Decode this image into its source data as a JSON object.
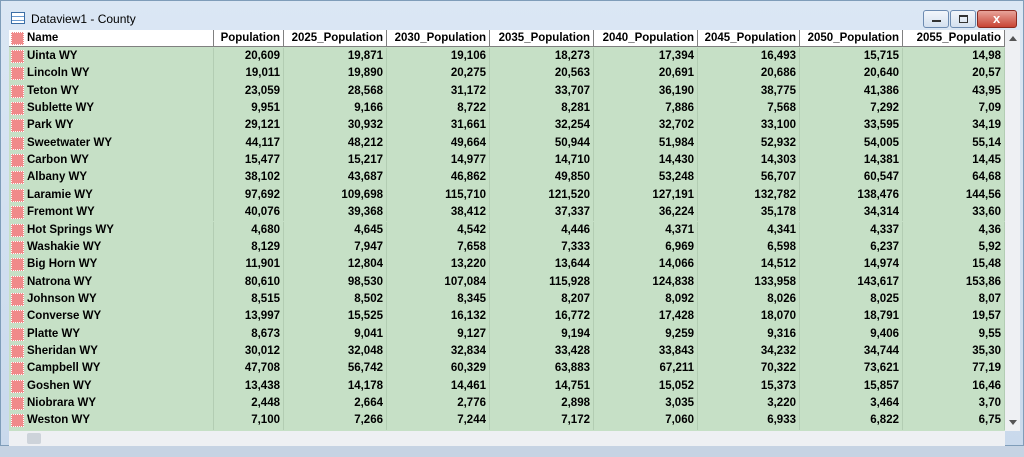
{
  "window": {
    "title": "Dataview1 - County"
  },
  "table": {
    "columns": [
      "Name",
      "Population",
      "2025_Population",
      "2030_Population",
      "2035_Population",
      "2040_Population",
      "2045_Population",
      "2050_Population",
      "2055_Populatio"
    ],
    "rows": [
      [
        "Uinta WY",
        "20,609",
        "19,871",
        "19,106",
        "18,273",
        "17,394",
        "16,493",
        "15,715",
        "14,98"
      ],
      [
        "Lincoln WY",
        "19,011",
        "19,890",
        "20,275",
        "20,563",
        "20,691",
        "20,686",
        "20,640",
        "20,57"
      ],
      [
        "Teton WY",
        "23,059",
        "28,568",
        "31,172",
        "33,707",
        "36,190",
        "38,775",
        "41,386",
        "43,95"
      ],
      [
        "Sublette WY",
        "9,951",
        "9,166",
        "8,722",
        "8,281",
        "7,886",
        "7,568",
        "7,292",
        "7,09"
      ],
      [
        "Park WY",
        "29,121",
        "30,932",
        "31,661",
        "32,254",
        "32,702",
        "33,100",
        "33,595",
        "34,19"
      ],
      [
        "Sweetwater WY",
        "44,117",
        "48,212",
        "49,664",
        "50,944",
        "51,984",
        "52,932",
        "54,005",
        "55,14"
      ],
      [
        "Carbon WY",
        "15,477",
        "15,217",
        "14,977",
        "14,710",
        "14,430",
        "14,303",
        "14,381",
        "14,45"
      ],
      [
        "Albany WY",
        "38,102",
        "43,687",
        "46,862",
        "49,850",
        "53,248",
        "56,707",
        "60,547",
        "64,68"
      ],
      [
        "Laramie WY",
        "97,692",
        "109,698",
        "115,710",
        "121,520",
        "127,191",
        "132,782",
        "138,476",
        "144,56"
      ],
      [
        "Fremont WY",
        "40,076",
        "39,368",
        "38,412",
        "37,337",
        "36,224",
        "35,178",
        "34,314",
        "33,60"
      ],
      [
        "Hot Springs WY",
        "4,680",
        "4,645",
        "4,542",
        "4,446",
        "4,371",
        "4,341",
        "4,337",
        "4,36"
      ],
      [
        "Washakie WY",
        "8,129",
        "7,947",
        "7,658",
        "7,333",
        "6,969",
        "6,598",
        "6,237",
        "5,92"
      ],
      [
        "Big Horn WY",
        "11,901",
        "12,804",
        "13,220",
        "13,644",
        "14,066",
        "14,512",
        "14,974",
        "15,48"
      ],
      [
        "Natrona WY",
        "80,610",
        "98,530",
        "107,084",
        "115,928",
        "124,838",
        "133,958",
        "143,617",
        "153,86"
      ],
      [
        "Johnson WY",
        "8,515",
        "8,502",
        "8,345",
        "8,207",
        "8,092",
        "8,026",
        "8,025",
        "8,07"
      ],
      [
        "Converse WY",
        "13,997",
        "15,525",
        "16,132",
        "16,772",
        "17,428",
        "18,070",
        "18,791",
        "19,57"
      ],
      [
        "Platte WY",
        "8,673",
        "9,041",
        "9,127",
        "9,194",
        "9,259",
        "9,316",
        "9,406",
        "9,55"
      ],
      [
        "Sheridan WY",
        "30,012",
        "32,048",
        "32,834",
        "33,428",
        "33,843",
        "34,232",
        "34,744",
        "35,30"
      ],
      [
        "Campbell WY",
        "47,708",
        "56,742",
        "60,329",
        "63,883",
        "67,211",
        "70,322",
        "73,621",
        "77,19"
      ],
      [
        "Goshen WY",
        "13,438",
        "14,178",
        "14,461",
        "14,751",
        "15,052",
        "15,373",
        "15,857",
        "16,46"
      ],
      [
        "Niobrara WY",
        "2,448",
        "2,664",
        "2,776",
        "2,898",
        "3,035",
        "3,220",
        "3,464",
        "3,70"
      ],
      [
        "Weston WY",
        "7,100",
        "7,266",
        "7,244",
        "7,172",
        "7,060",
        "6,933",
        "6,822",
        "6,75"
      ]
    ]
  }
}
